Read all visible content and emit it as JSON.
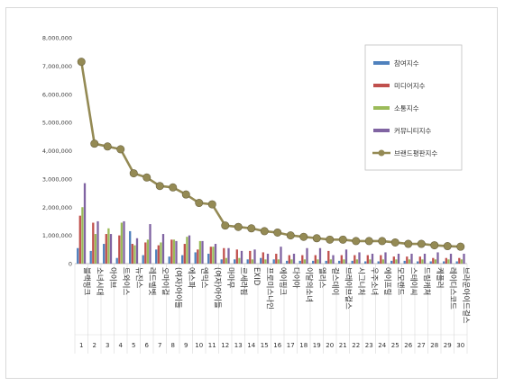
{
  "chart_data": {
    "type": "bar",
    "y_ticks": [
      "0",
      "1,000,000",
      "2,000,000",
      "3,000,000",
      "4,000,000",
      "5,000,000",
      "6,000,000",
      "7,000,000",
      "8,000,000"
    ],
    "ylim": [
      0,
      8000000
    ],
    "grid": false,
    "legend_position": "top-right",
    "ranks": [
      "1",
      "2",
      "3",
      "4",
      "5",
      "6",
      "7",
      "8",
      "9",
      "10",
      "11",
      "12",
      "13",
      "14",
      "15",
      "16",
      "17",
      "18",
      "19",
      "20",
      "21",
      "22",
      "23",
      "24",
      "25",
      "26",
      "27",
      "28",
      "29",
      "30"
    ],
    "categories": [
      "블랙핑크",
      "소녀시대",
      "아이브",
      "트와이스",
      "뉴진스",
      "레드벨벳",
      "오마이걸",
      "(여자)아이들",
      "에스파",
      "엔믹스",
      "(여자)아이들",
      "마마무",
      "르세라핌",
      "EXID",
      "프로미스나인",
      "에이핑크",
      "다이아",
      "이달의소녀",
      "엘리스",
      "걸스데이",
      "브레이브걸스",
      "시그니처",
      "우주소녀",
      "에이프릴",
      "모모랜드",
      "스테이씨",
      "드림캐쳐",
      "케플러",
      "레이디스코드",
      "브라운아이드걸스"
    ],
    "series": [
      {
        "name": "참여지수",
        "color": "#4f81bd",
        "values": [
          550000,
          450000,
          700000,
          200000,
          1150000,
          300000,
          500000,
          250000,
          300000,
          400000,
          350000,
          150000,
          150000,
          150000,
          200000,
          150000,
          100000,
          100000,
          100000,
          100000,
          100000,
          100000,
          80000,
          80000,
          100000,
          100000,
          80000,
          80000,
          80000,
          80000
        ]
      },
      {
        "name": "미디어지수",
        "color": "#c0504d",
        "values": [
          1700000,
          1450000,
          1050000,
          1000000,
          700000,
          750000,
          650000,
          850000,
          700000,
          500000,
          600000,
          550000,
          500000,
          450000,
          400000,
          350000,
          300000,
          300000,
          300000,
          450000,
          300000,
          300000,
          300000,
          300000,
          250000,
          250000,
          250000,
          200000,
          200000,
          200000
        ]
      },
      {
        "name": "소통지수",
        "color": "#9bbb59",
        "values": [
          2000000,
          1050000,
          1250000,
          1450000,
          650000,
          850000,
          750000,
          850000,
          950000,
          800000,
          600000,
          200000,
          200000,
          150000,
          150000,
          150000,
          150000,
          150000,
          150000,
          150000,
          150000,
          150000,
          150000,
          150000,
          150000,
          150000,
          150000,
          150000,
          150000,
          150000
        ]
      },
      {
        "name": "커뮤니티지수",
        "color": "#8064a2",
        "values": [
          2850000,
          1500000,
          1050000,
          1500000,
          900000,
          1400000,
          1050000,
          800000,
          1000000,
          800000,
          700000,
          550000,
          450000,
          500000,
          350000,
          600000,
          350000,
          550000,
          550000,
          300000,
          500000,
          400000,
          350000,
          400000,
          350000,
          350000,
          350000,
          400000,
          350000,
          350000
        ]
      },
      {
        "name": "브랜드평판지수",
        "color": "#948a54",
        "type": "line",
        "values": [
          7150000,
          4250000,
          4150000,
          4050000,
          3200000,
          3050000,
          2750000,
          2700000,
          2450000,
          2150000,
          2100000,
          1350000,
          1300000,
          1250000,
          1150000,
          1100000,
          1000000,
          950000,
          900000,
          850000,
          850000,
          800000,
          800000,
          800000,
          750000,
          700000,
          700000,
          650000,
          620000,
          600000
        ]
      }
    ]
  }
}
